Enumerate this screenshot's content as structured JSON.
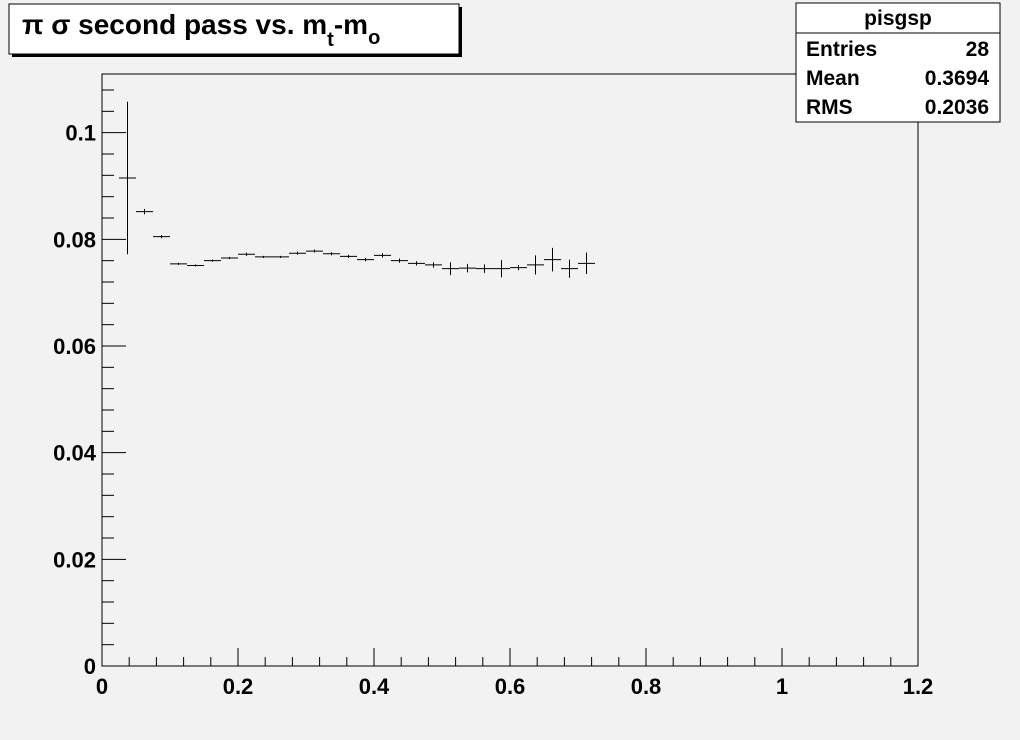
{
  "chart_data": {
    "type": "scatter",
    "title": "π σ second pass vs. m",
    "title_sub_t": "t",
    "title_sep": "-m",
    "title_sub_o": "o",
    "xlabel": "",
    "ylabel": "",
    "xlim": [
      0,
      1.2
    ],
    "ylim": [
      0,
      0.111
    ],
    "x_ticks": [
      0,
      0.2,
      0.4,
      0.6,
      0.8,
      1,
      1.2
    ],
    "x_tick_labels": [
      "0",
      "0.2",
      "0.4",
      "0.6",
      "0.8",
      "1",
      "1.2"
    ],
    "y_ticks": [
      0,
      0.02,
      0.04,
      0.06,
      0.08,
      0.1
    ],
    "y_tick_labels": [
      "0",
      "0.02",
      "0.04",
      "0.06",
      "0.08",
      "0.1"
    ],
    "bin_width": 0.025,
    "grid": false,
    "points": [
      {
        "x": 0.0375,
        "y": 0.0915,
        "err": 0.0143
      },
      {
        "x": 0.0625,
        "y": 0.0852,
        "err": 0.0005
      },
      {
        "x": 0.0875,
        "y": 0.0805,
        "err": 0.0003
      },
      {
        "x": 0.1125,
        "y": 0.0754,
        "err": 0.0002
      },
      {
        "x": 0.1375,
        "y": 0.0751,
        "err": 0.0002
      },
      {
        "x": 0.1625,
        "y": 0.076,
        "err": 0.0002
      },
      {
        "x": 0.1875,
        "y": 0.0765,
        "err": 0.0002
      },
      {
        "x": 0.2125,
        "y": 0.0772,
        "err": 0.0003
      },
      {
        "x": 0.2375,
        "y": 0.0767,
        "err": 0.0002
      },
      {
        "x": 0.2625,
        "y": 0.0767,
        "err": 0.0002
      },
      {
        "x": 0.2875,
        "y": 0.0774,
        "err": 0.0003
      },
      {
        "x": 0.3125,
        "y": 0.0778,
        "err": 0.0003
      },
      {
        "x": 0.3375,
        "y": 0.0773,
        "err": 0.0003
      },
      {
        "x": 0.3625,
        "y": 0.0768,
        "err": 0.0003
      },
      {
        "x": 0.3875,
        "y": 0.0762,
        "err": 0.0003
      },
      {
        "x": 0.4125,
        "y": 0.077,
        "err": 0.0004
      },
      {
        "x": 0.4375,
        "y": 0.076,
        "err": 0.0004
      },
      {
        "x": 0.4625,
        "y": 0.0755,
        "err": 0.0004
      },
      {
        "x": 0.4875,
        "y": 0.0752,
        "err": 0.0005
      },
      {
        "x": 0.5125,
        "y": 0.0745,
        "err": 0.0012
      },
      {
        "x": 0.5375,
        "y": 0.0746,
        "err": 0.0008
      },
      {
        "x": 0.5625,
        "y": 0.0745,
        "err": 0.0008
      },
      {
        "x": 0.5875,
        "y": 0.0745,
        "err": 0.0016
      },
      {
        "x": 0.6125,
        "y": 0.0747,
        "err": 0.0005
      },
      {
        "x": 0.6375,
        "y": 0.0752,
        "err": 0.0018
      },
      {
        "x": 0.6625,
        "y": 0.0762,
        "err": 0.0022
      },
      {
        "x": 0.6875,
        "y": 0.0745,
        "err": 0.0017
      },
      {
        "x": 0.7125,
        "y": 0.0755,
        "err": 0.002
      }
    ],
    "stats_box": {
      "name": "pisgsp",
      "rows": [
        {
          "label": "Entries",
          "value": "28"
        },
        {
          "label": "Mean",
          "value": "0.3694"
        },
        {
          "label": "RMS",
          "value": "0.2036"
        }
      ]
    },
    "colors": {
      "background": "#f2f2f2",
      "frame": "#000000",
      "markers": "#000000",
      "box_fill": "#ffffff"
    }
  }
}
